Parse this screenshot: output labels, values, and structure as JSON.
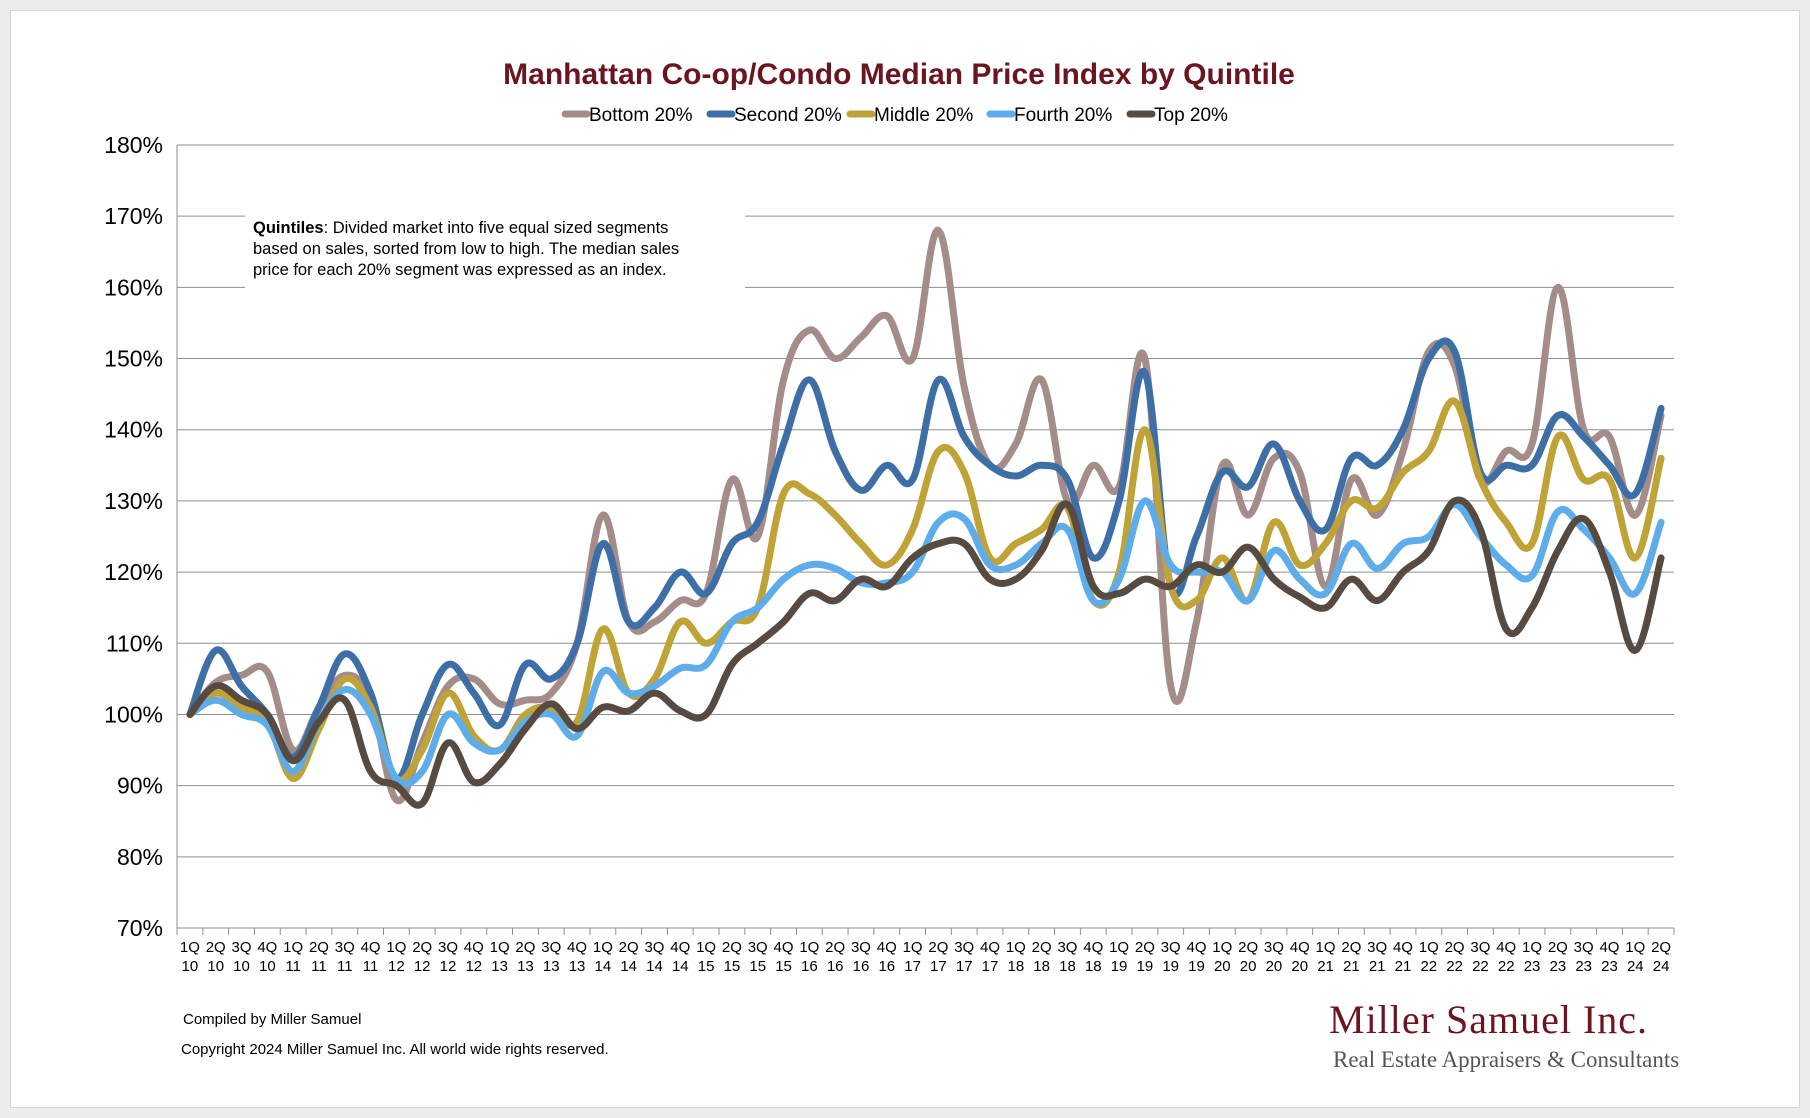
{
  "chart_data": {
    "type": "line",
    "title": "Manhattan Co-op/Condo Median Price Index by Quintile",
    "xlabel": "",
    "ylabel": "",
    "ylim": [
      70,
      180
    ],
    "y_ticks": [
      "70%",
      "80%",
      "90%",
      "100%",
      "110%",
      "120%",
      "130%",
      "140%",
      "150%",
      "160%",
      "170%",
      "180%"
    ],
    "grid": "horizontal",
    "legend_position": "top",
    "categories": [
      [
        "1Q",
        "10"
      ],
      [
        "2Q",
        "10"
      ],
      [
        "3Q",
        "10"
      ],
      [
        "4Q",
        "10"
      ],
      [
        "1Q",
        "11"
      ],
      [
        "2Q",
        "11"
      ],
      [
        "3Q",
        "11"
      ],
      [
        "4Q",
        "11"
      ],
      [
        "1Q",
        "12"
      ],
      [
        "2Q",
        "12"
      ],
      [
        "3Q",
        "12"
      ],
      [
        "4Q",
        "12"
      ],
      [
        "1Q",
        "13"
      ],
      [
        "2Q",
        "13"
      ],
      [
        "3Q",
        "13"
      ],
      [
        "4Q",
        "13"
      ],
      [
        "1Q",
        "14"
      ],
      [
        "2Q",
        "14"
      ],
      [
        "3Q",
        "14"
      ],
      [
        "4Q",
        "14"
      ],
      [
        "1Q",
        "15"
      ],
      [
        "2Q",
        "15"
      ],
      [
        "3Q",
        "15"
      ],
      [
        "4Q",
        "15"
      ],
      [
        "1Q",
        "16"
      ],
      [
        "2Q",
        "16"
      ],
      [
        "3Q",
        "16"
      ],
      [
        "4Q",
        "16"
      ],
      [
        "1Q",
        "17"
      ],
      [
        "2Q",
        "17"
      ],
      [
        "3Q",
        "17"
      ],
      [
        "4Q",
        "17"
      ],
      [
        "1Q",
        "18"
      ],
      [
        "2Q",
        "18"
      ],
      [
        "3Q",
        "18"
      ],
      [
        "4Q",
        "18"
      ],
      [
        "1Q",
        "19"
      ],
      [
        "2Q",
        "19"
      ],
      [
        "3Q",
        "19"
      ],
      [
        "4Q",
        "19"
      ],
      [
        "1Q",
        "20"
      ],
      [
        "2Q",
        "20"
      ],
      [
        "3Q",
        "20"
      ],
      [
        "4Q",
        "20"
      ],
      [
        "1Q",
        "21"
      ],
      [
        "2Q",
        "21"
      ],
      [
        "3Q",
        "21"
      ],
      [
        "4Q",
        "21"
      ],
      [
        "1Q",
        "22"
      ],
      [
        "2Q",
        "22"
      ],
      [
        "3Q",
        "22"
      ],
      [
        "4Q",
        "22"
      ],
      [
        "1Q",
        "23"
      ],
      [
        "2Q",
        "23"
      ],
      [
        "3Q",
        "23"
      ],
      [
        "4Q",
        "23"
      ],
      [
        "1Q",
        "24"
      ],
      [
        "2Q",
        "24"
      ]
    ],
    "series": [
      {
        "name": "Bottom 20%",
        "color": "#a48c89",
        "values": [
          100,
          104.5,
          105.5,
          106,
          95,
          101,
          105.5,
          102,
          88,
          96,
          104,
          105,
          101.5,
          102,
          103,
          110,
          128,
          113,
          113,
          116,
          117,
          133,
          125,
          147,
          154,
          150,
          153,
          156,
          150,
          168,
          146,
          135,
          138,
          147,
          130,
          135,
          132,
          150,
          104,
          113,
          135,
          128,
          136,
          134,
          118,
          133,
          128,
          137,
          151,
          149,
          133,
          137,
          138,
          160,
          140,
          139,
          128,
          142
        ]
      },
      {
        "name": "Second 20%",
        "color": "#3d6fa6",
        "values": [
          100,
          109,
          104,
          100,
          94,
          101,
          108.5,
          103,
          91,
          100,
          107,
          103,
          98.5,
          107,
          105,
          110,
          124,
          113,
          115,
          120,
          117,
          124,
          127,
          138,
          147,
          137,
          131.5,
          135,
          133,
          147,
          139,
          135,
          133.5,
          135,
          133,
          122,
          130,
          148,
          118,
          125,
          134,
          132,
          138,
          130,
          126,
          136,
          135,
          140,
          150,
          151,
          134,
          135,
          135,
          142,
          139,
          135,
          131,
          143
        ]
      },
      {
        "name": "Middle 20%",
        "color": "#bfa336",
        "values": [
          100,
          103,
          101,
          99,
          91,
          98,
          105,
          101,
          91,
          95,
          103,
          97,
          95,
          100,
          101,
          99,
          112,
          103,
          105,
          113,
          110,
          113,
          115,
          131,
          131,
          128,
          124,
          121,
          126,
          137,
          134,
          122,
          124,
          126,
          129,
          116,
          120,
          140,
          118,
          116,
          122,
          116,
          127,
          121,
          124,
          130,
          129,
          134,
          137,
          144,
          133,
          127,
          124,
          139,
          133,
          133,
          122,
          136
        ]
      },
      {
        "name": "Fourth 20%",
        "color": "#5eadea",
        "values": [
          100,
          102,
          100,
          98.5,
          92,
          99,
          103.5,
          100,
          91,
          92,
          100,
          96,
          95,
          99,
          100,
          97,
          106,
          103,
          104,
          106.5,
          107,
          113,
          115,
          119,
          121,
          120.5,
          118.5,
          118.5,
          120,
          127,
          127.5,
          121,
          121,
          124,
          126,
          116,
          119,
          130,
          121,
          120,
          120,
          116,
          123,
          119,
          117,
          124,
          120.5,
          124,
          125,
          129.5,
          125,
          121,
          119.5,
          128.5,
          126,
          122,
          117,
          127
        ]
      },
      {
        "name": "Top 20%",
        "color": "#574b41",
        "values": [
          100,
          104,
          102,
          100,
          93.5,
          99,
          102,
          92,
          90,
          87.5,
          96,
          90.5,
          93,
          98,
          101.5,
          98,
          101,
          100.5,
          103,
          100.5,
          100,
          107,
          110,
          113,
          117,
          116,
          119,
          118,
          122,
          124,
          124,
          119,
          119,
          123,
          129.5,
          118,
          117,
          119,
          118,
          121,
          120,
          123.5,
          119,
          116.5,
          115,
          119,
          116,
          120,
          123,
          130,
          126,
          112,
          115,
          123,
          127.5,
          120,
          109,
          122
        ]
      }
    ]
  },
  "note": {
    "bold": "Quintiles",
    "lines": [
      ": Divided market into five equal sized segments",
      "based on sales, sorted from low to high. The median sales",
      "price for each 20% segment was expressed as an index."
    ]
  },
  "footer": {
    "compiled": "Compiled by Miller Samuel",
    "copyright": "Copyright 2024 Miller Samuel Inc.  All world wide rights reserved."
  },
  "brand": {
    "name": "Miller Samuel Inc.",
    "tagline": "Real Estate Appraisers & Consultants"
  },
  "colors": {
    "title": "#6b1520",
    "grid": "#8f8f8f",
    "axis": "#8f8f8f"
  }
}
